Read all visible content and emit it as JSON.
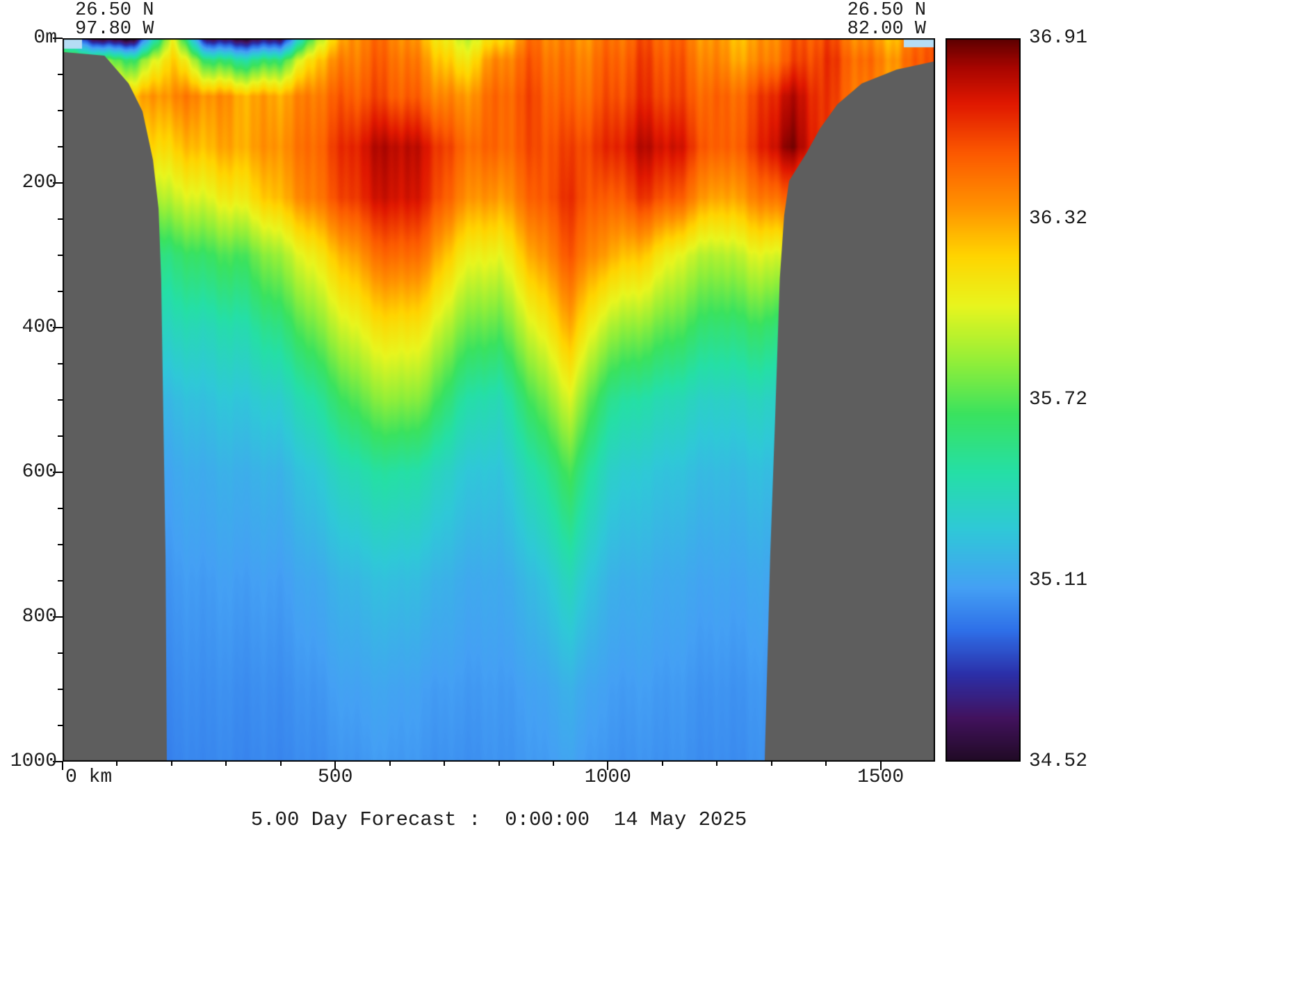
{
  "title": "5.00 Day Forecast :  0:00:00  14 May 2025",
  "header": {
    "top_left": {
      "lat": "26.50 N",
      "lon": "97.80 W"
    },
    "top_right": {
      "lat": "26.50 N",
      "lon": "82.00 W"
    }
  },
  "axes": {
    "depth_range_m": [
      0,
      1000
    ],
    "distance_range_km": [
      0,
      1600
    ],
    "depth_ticks": [
      {
        "m": 0,
        "label": "0m"
      },
      {
        "m": 200,
        "label": "200"
      },
      {
        "m": 400,
        "label": "400"
      },
      {
        "m": 600,
        "label": "600"
      },
      {
        "m": 800,
        "label": "800"
      },
      {
        "m": 1000,
        "label": "1000"
      }
    ],
    "depth_minor_step_m": 50,
    "distance_ticks": [
      {
        "km": 0,
        "label": "0 km"
      },
      {
        "km": 500,
        "label": "500"
      },
      {
        "km": 1000,
        "label": "1000"
      },
      {
        "km": 1500,
        "label": "1500"
      }
    ],
    "distance_minor_step_km": 100
  },
  "colorbar": {
    "min": 34.52,
    "max": 36.91,
    "tick_labels": [
      "36.91",
      "36.32",
      "35.72",
      "35.11",
      "34.52"
    ],
    "tick_fractions_from_top": [
      0,
      0.25,
      0.5,
      0.75,
      1
    ],
    "stops": [
      {
        "t": 0.0,
        "color": "#200a24"
      },
      {
        "t": 0.06,
        "color": "#42125e"
      },
      {
        "t": 0.12,
        "color": "#2b2fa8"
      },
      {
        "t": 0.18,
        "color": "#2e6fe8"
      },
      {
        "t": 0.24,
        "color": "#44a0f4"
      },
      {
        "t": 0.32,
        "color": "#2fc8d8"
      },
      {
        "t": 0.4,
        "color": "#25dfa6"
      },
      {
        "t": 0.48,
        "color": "#3ae25f"
      },
      {
        "t": 0.55,
        "color": "#8fee3a"
      },
      {
        "t": 0.63,
        "color": "#e8f51e"
      },
      {
        "t": 0.7,
        "color": "#ffd400"
      },
      {
        "t": 0.77,
        "color": "#ff9000"
      },
      {
        "t": 0.84,
        "color": "#fc5a00"
      },
      {
        "t": 0.91,
        "color": "#e01800"
      },
      {
        "t": 0.96,
        "color": "#a80500"
      },
      {
        "t": 1.0,
        "color": "#5c0000"
      }
    ]
  },
  "chart_data": {
    "type": "heatmap",
    "title": "5.00 Day Forecast :  0:00:00  14 May 2025",
    "xlabel": "km",
    "ylabel": "m",
    "value_name": "salinity",
    "value_range": [
      34.52,
      36.91
    ],
    "x_km": [
      0,
      65,
      130,
      200,
      265,
      330,
      400,
      465,
      530,
      600,
      665,
      730,
      800,
      865,
      930,
      1000,
      1065,
      1130,
      1200,
      1265,
      1330,
      1400,
      1465,
      1530,
      1600
    ],
    "depth_m": [
      0,
      30,
      80,
      150,
      220,
      300,
      400,
      500,
      600,
      750,
      900,
      1000
    ],
    "salinity": [
      [
        35.2,
        34.55,
        34.55,
        36.1,
        34.6,
        34.55,
        34.7,
        35.9,
        36.35,
        36.45,
        36.3,
        35.95,
        36.1,
        36.45,
        36.4,
        36.45,
        36.5,
        36.45,
        36.35,
        36.3,
        36.45,
        36.55,
        36.4,
        36.3,
        36.6
      ],
      [
        35.8,
        35.8,
        35.7,
        36.25,
        35.6,
        35.5,
        35.7,
        36.25,
        36.4,
        36.5,
        36.4,
        36.1,
        36.35,
        36.5,
        36.45,
        36.5,
        36.55,
        36.5,
        36.4,
        36.35,
        36.5,
        36.6,
        36.5,
        36.4,
        36.6
      ],
      [
        36.2,
        36.3,
        36.3,
        36.4,
        36.35,
        36.3,
        36.35,
        36.45,
        36.5,
        36.55,
        36.5,
        36.35,
        36.45,
        36.55,
        36.5,
        36.55,
        36.6,
        36.55,
        36.5,
        36.55,
        36.75,
        36.6,
        36.45,
        36.35,
        36.55
      ],
      [
        36.0,
        36.1,
        36.15,
        36.2,
        36.25,
        36.3,
        36.4,
        36.5,
        36.65,
        36.8,
        36.75,
        36.5,
        36.45,
        36.55,
        36.6,
        36.65,
        36.75,
        36.7,
        36.5,
        36.6,
        36.85,
        36.6,
        36.3,
        36.1,
        36.2
      ],
      [
        35.7,
        35.8,
        35.9,
        35.95,
        36.0,
        36.1,
        36.3,
        36.45,
        36.6,
        36.75,
        36.7,
        36.4,
        36.3,
        36.5,
        36.65,
        36.5,
        36.6,
        36.5,
        36.3,
        36.4,
        36.5,
        36.2,
        36.0,
        35.9,
        36.0
      ],
      [
        35.4,
        35.5,
        35.55,
        35.6,
        35.65,
        35.7,
        35.9,
        36.1,
        36.3,
        36.5,
        36.45,
        36.1,
        36.0,
        36.3,
        36.55,
        36.3,
        36.2,
        36.0,
        35.9,
        36.0,
        36.0,
        35.8,
        35.7,
        35.6,
        35.7
      ],
      [
        35.25,
        35.3,
        35.35,
        35.4,
        35.4,
        35.45,
        35.6,
        35.8,
        36.0,
        36.15,
        36.1,
        35.8,
        35.7,
        36.0,
        36.3,
        35.9,
        35.8,
        35.7,
        35.6,
        35.65,
        35.6,
        35.5,
        35.45,
        35.4,
        35.45
      ],
      [
        35.15,
        35.18,
        35.2,
        35.22,
        35.25,
        35.28,
        35.35,
        35.5,
        35.7,
        35.85,
        35.8,
        35.5,
        35.4,
        35.7,
        36.0,
        35.55,
        35.45,
        35.4,
        35.35,
        35.38,
        35.35,
        35.3,
        35.28,
        35.25,
        35.28
      ],
      [
        35.1,
        35.1,
        35.12,
        35.13,
        35.15,
        35.17,
        35.2,
        35.3,
        35.42,
        35.5,
        35.45,
        35.3,
        35.25,
        35.45,
        35.7,
        35.35,
        35.28,
        35.25,
        35.22,
        35.24,
        35.22,
        35.2,
        35.18,
        35.16,
        35.18
      ],
      [
        35.05,
        35.05,
        35.06,
        35.07,
        35.08,
        35.09,
        35.1,
        35.14,
        35.2,
        35.25,
        35.22,
        35.15,
        35.13,
        35.22,
        35.4,
        35.18,
        35.15,
        35.13,
        35.12,
        35.13,
        35.12,
        35.1,
        35.1,
        35.09,
        35.1
      ],
      [
        35.02,
        35.02,
        35.03,
        35.03,
        35.04,
        35.04,
        35.05,
        35.07,
        35.1,
        35.12,
        35.1,
        35.08,
        35.07,
        35.1,
        35.18,
        35.09,
        35.08,
        35.07,
        35.06,
        35.07,
        35.06,
        35.05,
        35.05,
        35.04,
        35.05
      ],
      [
        35.0,
        35.0,
        35.01,
        35.01,
        35.02,
        35.02,
        35.03,
        35.04,
        35.06,
        35.08,
        35.07,
        35.05,
        35.05,
        35.07,
        35.12,
        35.06,
        35.05,
        35.05,
        35.04,
        35.05,
        35.04,
        35.03,
        35.03,
        35.03,
        35.03
      ]
    ],
    "land_color": "#5e5e5e",
    "mask_polygons": {
      "left": [
        [
          0,
          0.019
        ],
        [
          0.048,
          0.024
        ],
        [
          0.0757,
          0.0625
        ],
        [
          0.0916,
          0.101
        ],
        [
          0.1036,
          0.168
        ],
        [
          0.11,
          0.2356
        ],
        [
          0.113,
          0.332
        ],
        [
          0.1155,
          0.524
        ],
        [
          0.118,
          0.716
        ],
        [
          0.1195,
          1.0
        ],
        [
          0,
          1.0
        ]
      ],
      "right": [
        [
          1,
          0.0317
        ],
        [
          0.956,
          0.0433
        ],
        [
          0.916,
          0.0625
        ],
        [
          0.888,
          0.0913
        ],
        [
          0.868,
          0.125
        ],
        [
          0.8526,
          0.1587
        ],
        [
          0.8327,
          0.197
        ],
        [
          0.827,
          0.245
        ],
        [
          0.822,
          0.332
        ],
        [
          0.8167,
          0.524
        ],
        [
          0.811,
          0.716
        ],
        [
          0.8047,
          1.0
        ],
        [
          1,
          1.0
        ]
      ]
    },
    "corner_patches": [
      {
        "x": 0.0,
        "y": 0.0,
        "w": 0.0223,
        "h": 0.0144,
        "color": "#b5ddf5"
      },
      {
        "x": 0.9641,
        "y": 0.0,
        "w": 0.0359,
        "h": 0.0125,
        "color": "#b5ddf5"
      }
    ],
    "legend_position": "right",
    "grid": false
  },
  "layout_colors": {
    "background": "#ffffff",
    "frame": "#000000",
    "text": "#1a1a1a"
  }
}
